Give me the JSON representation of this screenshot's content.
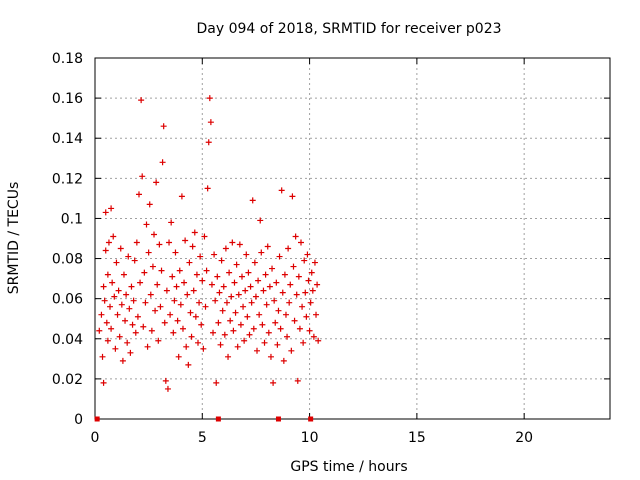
{
  "chart_data": {
    "type": "scatter",
    "title": "Day 094 of 2018, SRMTID for receiver p023",
    "xlabel": "GPS time / hours",
    "ylabel": "SRMTID / TECUs",
    "xlim": [
      0,
      24
    ],
    "ylim": [
      0,
      0.18
    ],
    "x_ticks": [
      0,
      5,
      10,
      15,
      20
    ],
    "x_tick_labels": [
      "0",
      "5",
      "10",
      "15",
      "20"
    ],
    "y_ticks": [
      0,
      0.02,
      0.04,
      0.06,
      0.08,
      0.1,
      0.12,
      0.14,
      0.16,
      0.18
    ],
    "y_tick_labels": [
      "0",
      "0.02",
      "0.04",
      "0.06",
      "0.08",
      "0.1",
      "0.12",
      "0.14",
      "0.16",
      "0.18"
    ],
    "grid": true,
    "marker": "plus",
    "color": "#dd0000",
    "gap_markers_x": [
      0.1,
      5.75,
      8.55,
      10.05
    ],
    "series": [
      {
        "name": "SRMTID",
        "points": [
          [
            0.2,
            0.044
          ],
          [
            0.3,
            0.052
          ],
          [
            0.35,
            0.031
          ],
          [
            0.4,
            0.018
          ],
          [
            0.4,
            0.066
          ],
          [
            0.45,
            0.059
          ],
          [
            0.5,
            0.084
          ],
          [
            0.5,
            0.103
          ],
          [
            0.55,
            0.048
          ],
          [
            0.6,
            0.039
          ],
          [
            0.6,
            0.072
          ],
          [
            0.65,
            0.088
          ],
          [
            0.7,
            0.056
          ],
          [
            0.75,
            0.105
          ],
          [
            0.75,
            0.045
          ],
          [
            0.8,
            0.068
          ],
          [
            0.85,
            0.091
          ],
          [
            0.9,
            0.061
          ],
          [
            0.95,
            0.035
          ],
          [
            1.0,
            0.078
          ],
          [
            1.05,
            0.052
          ],
          [
            1.1,
            0.064
          ],
          [
            1.15,
            0.041
          ],
          [
            1.2,
            0.085
          ],
          [
            1.25,
            0.057
          ],
          [
            1.3,
            0.029
          ],
          [
            1.35,
            0.072
          ],
          [
            1.4,
            0.049
          ],
          [
            1.45,
            0.062
          ],
          [
            1.5,
            0.038
          ],
          [
            1.55,
            0.081
          ],
          [
            1.6,
            0.055
          ],
          [
            1.65,
            0.033
          ],
          [
            1.7,
            0.066
          ],
          [
            1.75,
            0.047
          ],
          [
            1.8,
            0.059
          ],
          [
            1.85,
            0.079
          ],
          [
            1.9,
            0.043
          ],
          [
            1.95,
            0.088
          ],
          [
            2.0,
            0.051
          ],
          [
            2.05,
            0.112
          ],
          [
            2.1,
            0.068
          ],
          [
            2.15,
            0.159
          ],
          [
            2.2,
            0.121
          ],
          [
            2.25,
            0.046
          ],
          [
            2.3,
            0.073
          ],
          [
            2.35,
            0.058
          ],
          [
            2.4,
            0.097
          ],
          [
            2.45,
            0.036
          ],
          [
            2.5,
            0.083
          ],
          [
            2.55,
            0.107
          ],
          [
            2.6,
            0.062
          ],
          [
            2.65,
            0.044
          ],
          [
            2.7,
            0.076
          ],
          [
            2.75,
            0.092
          ],
          [
            2.8,
            0.054
          ],
          [
            2.85,
            0.118
          ],
          [
            2.9,
            0.067
          ],
          [
            2.95,
            0.039
          ],
          [
            3.0,
            0.087
          ],
          [
            3.05,
            0.056
          ],
          [
            3.1,
            0.074
          ],
          [
            3.15,
            0.128
          ],
          [
            3.2,
            0.146
          ],
          [
            3.25,
            0.048
          ],
          [
            3.3,
            0.019
          ],
          [
            3.35,
            0.064
          ],
          [
            3.4,
            0.015
          ],
          [
            3.45,
            0.088
          ],
          [
            3.5,
            0.052
          ],
          [
            3.55,
            0.098
          ],
          [
            3.6,
            0.071
          ],
          [
            3.65,
            0.043
          ],
          [
            3.7,
            0.059
          ],
          [
            3.75,
            0.083
          ],
          [
            3.8,
            0.066
          ],
          [
            3.85,
            0.049
          ],
          [
            3.9,
            0.031
          ],
          [
            3.95,
            0.074
          ],
          [
            4.0,
            0.057
          ],
          [
            4.05,
            0.111
          ],
          [
            4.1,
            0.045
          ],
          [
            4.15,
            0.068
          ],
          [
            4.2,
            0.089
          ],
          [
            4.25,
            0.036
          ],
          [
            4.3,
            0.062
          ],
          [
            4.35,
            0.027
          ],
          [
            4.4,
            0.078
          ],
          [
            4.45,
            0.053
          ],
          [
            4.5,
            0.041
          ],
          [
            4.55,
            0.086
          ],
          [
            4.6,
            0.064
          ],
          [
            4.65,
            0.093
          ],
          [
            4.7,
            0.051
          ],
          [
            4.75,
            0.072
          ],
          [
            4.8,
            0.038
          ],
          [
            4.85,
            0.058
          ],
          [
            4.9,
            0.081
          ],
          [
            4.95,
            0.047
          ],
          [
            5.0,
            0.069
          ],
          [
            5.05,
            0.035
          ],
          [
            5.1,
            0.091
          ],
          [
            5.15,
            0.056
          ],
          [
            5.2,
            0.074
          ],
          [
            5.25,
            0.115
          ],
          [
            5.3,
            0.138
          ],
          [
            5.35,
            0.16
          ],
          [
            5.4,
            0.148
          ],
          [
            5.45,
            0.067
          ],
          [
            5.5,
            0.043
          ],
          [
            5.55,
            0.082
          ],
          [
            5.6,
            0.059
          ],
          [
            5.65,
            0.018
          ],
          [
            5.7,
            0.071
          ],
          [
            5.75,
            0.048
          ],
          [
            5.8,
            0.063
          ],
          [
            5.85,
            0.037
          ],
          [
            5.9,
            0.079
          ],
          [
            5.95,
            0.054
          ],
          [
            6.0,
            0.066
          ],
          [
            6.05,
            0.042
          ],
          [
            6.1,
            0.085
          ],
          [
            6.15,
            0.058
          ],
          [
            6.2,
            0.031
          ],
          [
            6.25,
            0.073
          ],
          [
            6.3,
            0.049
          ],
          [
            6.35,
            0.061
          ],
          [
            6.4,
            0.088
          ],
          [
            6.45,
            0.044
          ],
          [
            6.5,
            0.068
          ],
          [
            6.55,
            0.053
          ],
          [
            6.6,
            0.077
          ],
          [
            6.65,
            0.036
          ],
          [
            6.7,
            0.062
          ],
          [
            6.75,
            0.087
          ],
          [
            6.8,
            0.047
          ],
          [
            6.85,
            0.071
          ],
          [
            6.9,
            0.056
          ],
          [
            6.95,
            0.039
          ],
          [
            7.0,
            0.064
          ],
          [
            7.05,
            0.082
          ],
          [
            7.1,
            0.051
          ],
          [
            7.15,
            0.073
          ],
          [
            7.2,
            0.042
          ],
          [
            7.25,
            0.066
          ],
          [
            7.3,
            0.058
          ],
          [
            7.35,
            0.109
          ],
          [
            7.4,
            0.045
          ],
          [
            7.45,
            0.078
          ],
          [
            7.5,
            0.061
          ],
          [
            7.55,
            0.034
          ],
          [
            7.6,
            0.069
          ],
          [
            7.65,
            0.052
          ],
          [
            7.7,
            0.099
          ],
          [
            7.75,
            0.083
          ],
          [
            7.8,
            0.047
          ],
          [
            7.85,
            0.064
          ],
          [
            7.9,
            0.038
          ],
          [
            7.95,
            0.072
          ],
          [
            8.0,
            0.057
          ],
          [
            8.05,
            0.086
          ],
          [
            8.1,
            0.043
          ],
          [
            8.15,
            0.066
          ],
          [
            8.2,
            0.031
          ],
          [
            8.25,
            0.075
          ],
          [
            8.3,
            0.018
          ],
          [
            8.35,
            0.059
          ],
          [
            8.4,
            0.048
          ],
          [
            8.45,
            0.068
          ],
          [
            8.5,
            0.037
          ],
          [
            8.55,
            0.054
          ],
          [
            8.6,
            0.081
          ],
          [
            8.65,
            0.045
          ],
          [
            8.7,
            0.114
          ],
          [
            8.75,
            0.063
          ],
          [
            8.8,
            0.029
          ],
          [
            8.85,
            0.072
          ],
          [
            8.9,
            0.052
          ],
          [
            8.95,
            0.041
          ],
          [
            9.0,
            0.085
          ],
          [
            9.05,
            0.058
          ],
          [
            9.1,
            0.067
          ],
          [
            9.15,
            0.034
          ],
          [
            9.2,
            0.111
          ],
          [
            9.25,
            0.076
          ],
          [
            9.3,
            0.049
          ],
          [
            9.35,
            0.091
          ],
          [
            9.4,
            0.062
          ],
          [
            9.45,
            0.019
          ],
          [
            9.5,
            0.071
          ],
          [
            9.55,
            0.045
          ],
          [
            9.6,
            0.088
          ],
          [
            9.65,
            0.056
          ],
          [
            9.7,
            0.038
          ],
          [
            9.75,
            0.079
          ],
          [
            9.8,
            0.063
          ],
          [
            9.85,
            0.051
          ],
          [
            9.9,
            0.082
          ],
          [
            9.95,
            0.069
          ],
          [
            10.0,
            0.044
          ],
          [
            10.05,
            0.058
          ],
          [
            10.1,
            0.073
          ],
          [
            10.15,
            0.064
          ],
          [
            10.2,
            0.041
          ],
          [
            10.25,
            0.078
          ],
          [
            10.3,
            0.052
          ],
          [
            10.35,
            0.067
          ],
          [
            10.4,
            0.039
          ]
        ]
      }
    ]
  }
}
